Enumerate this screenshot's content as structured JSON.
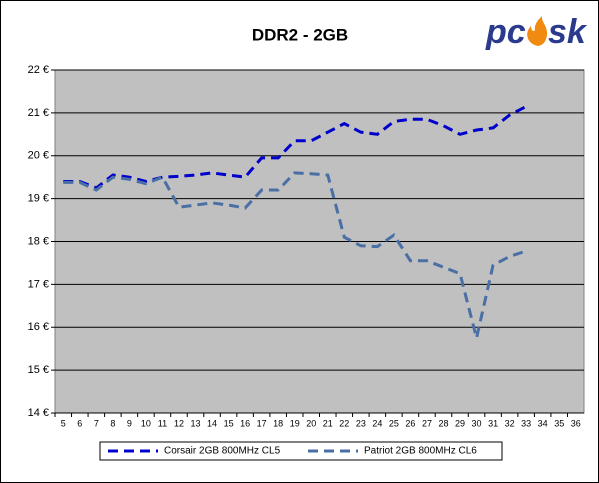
{
  "chart_data": {
    "type": "line",
    "title": "DDR2 - 2GB",
    "logo": [
      "pc",
      "sk"
    ],
    "categories": [
      "5",
      "6",
      "7",
      "8",
      "9",
      "10",
      "11",
      "12",
      "13",
      "14",
      "15",
      "16",
      "17",
      "18",
      "19",
      "20",
      "21",
      "22",
      "23",
      "24",
      "25",
      "26",
      "27",
      "28",
      "29",
      "30",
      "31",
      "32",
      "33",
      "34",
      "35",
      "36"
    ],
    "series": [
      {
        "name": "Corsair 2GB 800MHz CL5",
        "color": "#0000cc",
        "values": [
          19.4,
          19.4,
          19.25,
          19.55,
          19.5,
          19.4,
          19.5,
          19.52,
          19.55,
          19.6,
          19.55,
          19.5,
          19.95,
          19.95,
          20.35,
          20.35,
          20.55,
          20.75,
          20.55,
          20.5,
          20.8,
          20.85,
          20.85,
          20.7,
          20.5,
          20.6,
          20.65,
          20.95,
          21.15,
          null,
          null,
          null
        ]
      },
      {
        "name": "Patriot 2GB 800MHz CL6",
        "color": "#4a6fa5",
        "values": [
          19.38,
          19.38,
          19.2,
          19.5,
          19.45,
          19.35,
          19.5,
          18.8,
          18.85,
          18.9,
          18.85,
          18.78,
          19.2,
          19.2,
          19.6,
          19.58,
          19.55,
          18.1,
          17.9,
          17.88,
          18.15,
          17.55,
          17.55,
          17.4,
          17.25,
          15.75,
          17.45,
          17.65,
          17.78,
          null,
          null,
          null
        ]
      }
    ],
    "ylim": [
      14,
      22
    ],
    "yticks": [
      {
        "value": 14,
        "label": "14 €"
      },
      {
        "value": 15,
        "label": "15 €"
      },
      {
        "value": 16,
        "label": "16 €"
      },
      {
        "value": 17,
        "label": "17 €"
      },
      {
        "value": 18,
        "label": "18 €"
      },
      {
        "value": 19,
        "label": "19 €"
      },
      {
        "value": 20,
        "label": "20 €"
      },
      {
        "value": 21,
        "label": "21 €"
      },
      {
        "value": 22,
        "label": "22 €"
      }
    ],
    "grid": true,
    "legend": "bottom"
  }
}
